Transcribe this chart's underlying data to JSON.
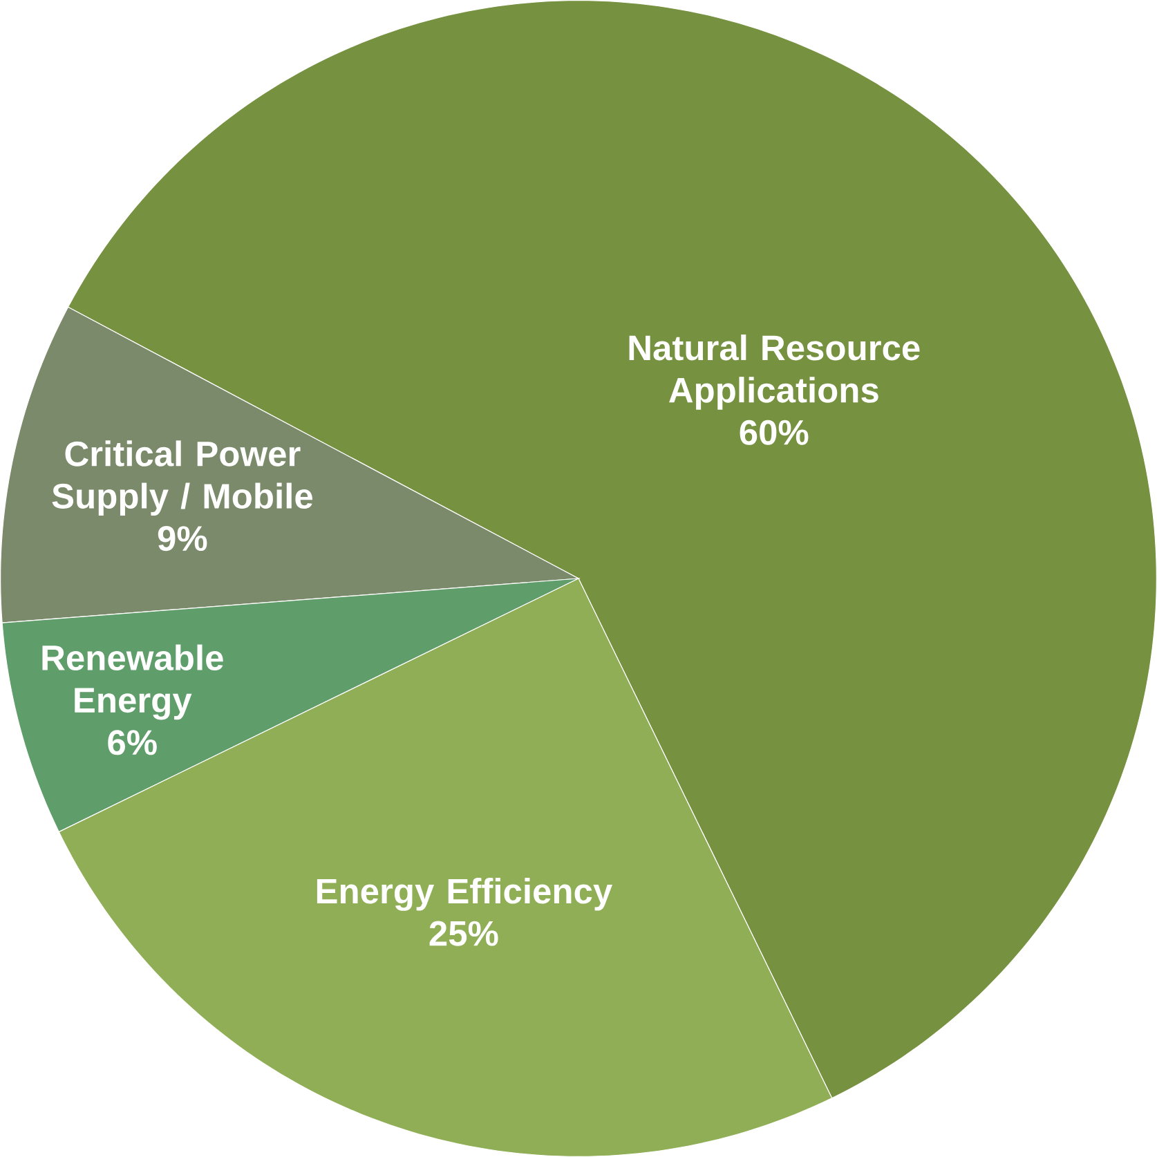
{
  "chart_data": {
    "type": "pie",
    "categories": [
      "Natural Resource Applications",
      "Critical Power Supply / Mobile",
      "Renewable Energy",
      "Energy Efficiency"
    ],
    "values": [
      60,
      9,
      6,
      25
    ],
    "value_labels": [
      "60%",
      "9%",
      "6%",
      "25%"
    ],
    "colors": [
      "#76913f",
      "#7b8a6a",
      "#5f9e6a",
      "#8fae55"
    ]
  }
}
